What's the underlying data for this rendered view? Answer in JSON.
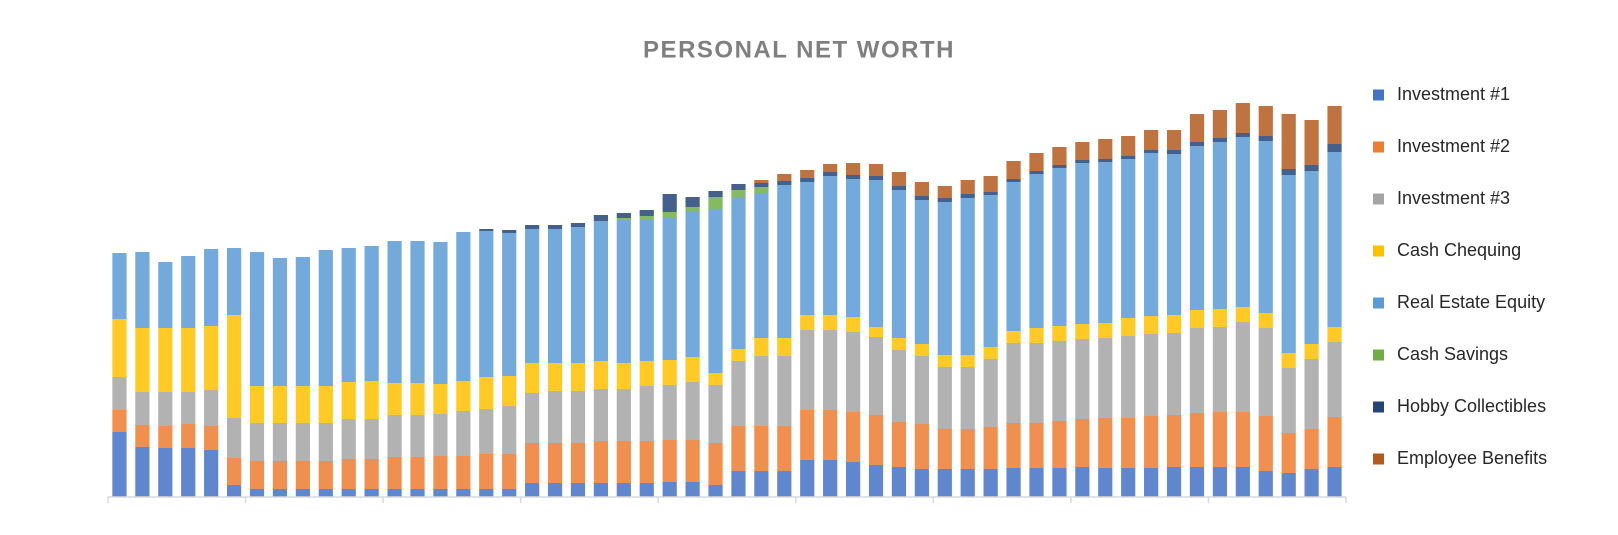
{
  "chart_data": {
    "type": "stacked-bar",
    "title": "PERSONAL NET WORTH",
    "legend": "right",
    "categories": [
      null,
      null,
      null,
      null,
      null,
      null,
      null,
      null,
      null,
      null,
      null,
      null,
      null,
      null,
      null,
      null,
      null,
      null,
      null,
      null,
      null,
      null,
      null,
      null,
      null,
      null,
      null,
      null,
      null,
      null,
      null,
      null,
      null,
      null,
      null,
      null,
      null,
      null,
      null,
      null,
      null,
      null,
      null,
      null,
      null,
      null,
      null,
      null,
      null,
      null,
      null,
      null,
      null,
      null
    ],
    "ylim": [
      0,
      400
    ],
    "series": [
      {
        "name": "Investment #1",
        "color": "#4472c4",
        "values": [
          65,
          50,
          49,
          49,
          47,
          12,
          8,
          8,
          8,
          8,
          8,
          8,
          8,
          8,
          8,
          8,
          8,
          8,
          14,
          14,
          14,
          14,
          14,
          14,
          15,
          15,
          12,
          26,
          26,
          26,
          37,
          37,
          35,
          32,
          30,
          28,
          28,
          28,
          28,
          29,
          29,
          29,
          30,
          29,
          29,
          29,
          30,
          30,
          30,
          30,
          26,
          24,
          28,
          30
        ]
      },
      {
        "name": "Investment #2",
        "color": "#ed7d31",
        "values": [
          22,
          22,
          22,
          24,
          24,
          27,
          28,
          28,
          28,
          28,
          30,
          30,
          32,
          32,
          33,
          33,
          35,
          35,
          40,
          40,
          40,
          42,
          42,
          42,
          42,
          42,
          42,
          45,
          45,
          45,
          50,
          50,
          50,
          50,
          45,
          45,
          40,
          40,
          42,
          45,
          45,
          47,
          48,
          50,
          50,
          52,
          52,
          54,
          55,
          55,
          55,
          40,
          40,
          50
        ]
      },
      {
        "name": "Investment #3",
        "color": "#a5a5a5",
        "values": [
          33,
          33,
          34,
          32,
          36,
          40,
          38,
          38,
          38,
          38,
          40,
          40,
          42,
          42,
          42,
          45,
          45,
          48,
          50,
          52,
          52,
          52,
          52,
          55,
          55,
          58,
          58,
          65,
          70,
          70,
          80,
          80,
          80,
          78,
          72,
          68,
          62,
          62,
          68,
          80,
          80,
          80,
          80,
          80,
          82,
          82,
          82,
          85,
          85,
          90,
          88,
          65,
          70,
          75
        ]
      },
      {
        "name": "Cash Chequing",
        "color": "#ffc000",
        "values": [
          58,
          64,
          64,
          64,
          64,
          103,
          37,
          37,
          37,
          37,
          37,
          38,
          32,
          32,
          30,
          30,
          32,
          30,
          30,
          28,
          28,
          28,
          26,
          25,
          25,
          25,
          12,
          12,
          18,
          18,
          15,
          15,
          15,
          10,
          12,
          12,
          12,
          12,
          12,
          12,
          15,
          15,
          15,
          15,
          18,
          18,
          18,
          18,
          18,
          15,
          15,
          15,
          15,
          15
        ]
      },
      {
        "name": "Real Estate Equity",
        "color": "#5b9bd5",
        "values": [
          66,
          76,
          66,
          72,
          77,
          67,
          134,
          128,
          129,
          136,
          134,
          135,
          142,
          142,
          142,
          149,
          146,
          143,
          134,
          134,
          136,
          140,
          143,
          141,
          142,
          145,
          164,
          151,
          145,
          153,
          133,
          139,
          138,
          147,
          148,
          144,
          153,
          157,
          152,
          149,
          154,
          158,
          161,
          161,
          159,
          163,
          161,
          164,
          167,
          170,
          172,
          178,
          173,
          175
        ]
      },
      {
        "name": "Cash Savings",
        "color": "#70ad47",
        "values": [
          0,
          0,
          0,
          0,
          0,
          0,
          0,
          0,
          0,
          0,
          0,
          0,
          0,
          0,
          0,
          0,
          0,
          0,
          0,
          0,
          0,
          0,
          2,
          4,
          6,
          5,
          12,
          8,
          6,
          0,
          0,
          0,
          0,
          0,
          0,
          0,
          0,
          0,
          0,
          0,
          0,
          0,
          0,
          0,
          0,
          0,
          0,
          0,
          0,
          0,
          0,
          0,
          0,
          0
        ]
      },
      {
        "name": "Hobby Collectibles",
        "color": "#264478",
        "values": [
          0,
          0,
          0,
          0,
          0,
          0,
          0,
          0,
          0,
          0,
          0,
          0,
          0,
          0,
          0,
          0,
          2,
          3,
          4,
          4,
          4,
          6,
          5,
          6,
          18,
          10,
          6,
          6,
          4,
          4,
          4,
          4,
          4,
          4,
          4,
          4,
          4,
          4,
          3,
          3,
          3,
          3,
          3,
          3,
          3,
          3,
          4,
          4,
          4,
          4,
          5,
          6,
          6,
          8
        ]
      },
      {
        "name": "Employee Benefits",
        "color": "#b35a1f",
        "values": [
          0,
          0,
          0,
          0,
          0,
          0,
          0,
          0,
          0,
          0,
          0,
          0,
          0,
          0,
          0,
          0,
          0,
          0,
          0,
          0,
          0,
          0,
          0,
          0,
          0,
          0,
          0,
          0,
          3,
          7,
          8,
          8,
          12,
          12,
          14,
          14,
          12,
          14,
          16,
          18,
          18,
          18,
          18,
          20,
          20,
          20,
          20,
          28,
          28,
          30,
          30,
          55,
          45,
          38
        ]
      }
    ]
  }
}
